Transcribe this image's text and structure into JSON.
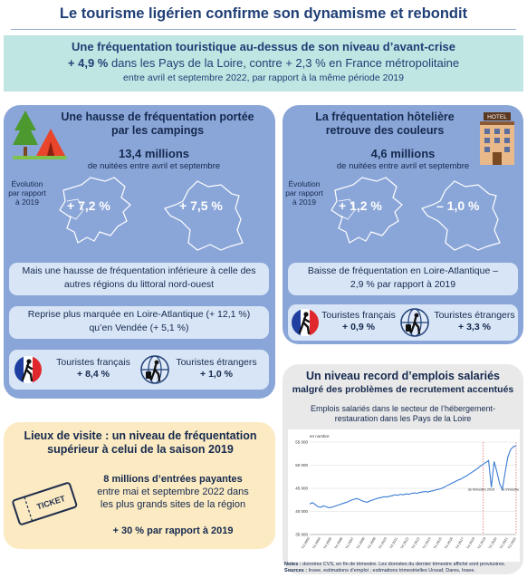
{
  "title": "Le tourisme ligérien confirme son dynamisme et rebondit",
  "banner": {
    "line1": "Une fréquentation touristique au-dessus de son niveau d’avant-crise",
    "line2_strong": "+ 4,9 %",
    "line2_rest": " dans les Pays de la Loire, contre + 2,3 % en France métropolitaine",
    "line3": "entre avril et septembre 2022, par rapport à la même période 2019"
  },
  "campings": {
    "title_l1": "Une hausse de fréquentation portée",
    "title_l2": "par les campings",
    "big": "13,4 millions",
    "sub": "de nuitées entre avril et septembre",
    "evo_l1": "Évolution",
    "evo_l2": "par rapport",
    "evo_l3": "à 2019",
    "pct_region": "+ 7,2 %",
    "pct_france": "+ 7,5 %",
    "box1": "Mais une hausse de fréquentation inférieure à celle des autres régions du littoral nord-ouest",
    "box2": "Reprise plus marquée en Loire-Atlantique (+ 12,1 %) qu’en Vendée (+ 5,1 %)",
    "fr_label": "Touristes français",
    "fr_value": "+ 8,4 %",
    "et_label": "Touristes étrangers",
    "et_value": "+ 1,0 %"
  },
  "hotels": {
    "title_l1": "La fréquentation hôtelière",
    "title_l2": "retrouve des couleurs",
    "big": "4,6 millions",
    "sub": "de nuitées entre avril et septembre",
    "evo_l1": "Évolution",
    "evo_l2": "par rapport",
    "evo_l3": "à 2019",
    "pct_region": "+ 1,2 %",
    "pct_france": "– 1,0 %",
    "box1": "Baisse de fréquentation en Loire-Atlantique – 2,9 % par rapport à 2019",
    "fr_label": "Touristes français",
    "fr_value": "+ 0,9 %",
    "et_label": "Touristes étrangers",
    "et_value": "+ 3,3 %",
    "hotel_sign": "HOTEL"
  },
  "visits": {
    "title_l1": "Lieux de visite : un niveau de fréquentation",
    "title_l2": "supérieur à celui de la saison 2019",
    "body_l1": "8 millions d’entrées payantes",
    "body_l2": "entre mai et septembre 2022 dans",
    "body_l3": "les plus grands sites de la région",
    "pct": "+ 30 % par rapport à 2019",
    "ticket_label": "TICKET"
  },
  "emplois": {
    "title_l1": "Un niveau record d’emplois salariés",
    "title_l2": "malgré des problèmes de recrutement accentués",
    "chart_title_l1": "Emplois salariés dans le secteur de l’hébergement-",
    "chart_title_l2": "restauration dans les Pays de la Loire",
    "notes_label": "Notes :",
    "notes": "données CVS, en fin de trimestre. Les données du dernier trimestre affiché sont provisoires.",
    "sources_label": "Sources :",
    "sources": "Insee, estimations d’emploi ; estimations trimestrielles Urssaf, Dares, Insee."
  },
  "chart_data": {
    "type": "line",
    "ylabel": "en nombre",
    "ylim": [
      35000,
      55000
    ],
    "y_ticks": [
      "35 000",
      "40 000",
      "45 000",
      "50 000",
      "55 000"
    ],
    "x_tick_labels": [
      "T4 2003",
      "T4 2004",
      "T4 2005",
      "T4 2006",
      "T4 2007",
      "T4 2008",
      "T4 2009",
      "T4 2010",
      "T4 2011",
      "T4 2012",
      "T4 2013",
      "T4 2014",
      "T4 2015",
      "T4 2016",
      "T4 2017",
      "T4 2018",
      "T4 2019",
      "T4 2020",
      "T4 2021",
      "T3 2022"
    ],
    "annotations": [
      {
        "label": "3e trimestre 2019",
        "x_index": 63
      },
      {
        "label": "3e trimestre 2022",
        "x_index": 75
      }
    ],
    "series": [
      {
        "values": [
          41600,
          41900,
          41500,
          41000,
          40900,
          41200,
          41000,
          40800,
          40900,
          41100,
          41300,
          41500,
          41700,
          41900,
          42100,
          42400,
          42600,
          42800,
          42600,
          42300,
          42100,
          42000,
          42300,
          42500,
          42700,
          42900,
          43000,
          43200,
          43100,
          43300,
          43400,
          43600,
          43500,
          43700,
          43600,
          43800,
          43700,
          43900,
          44000,
          43900,
          44100,
          44200,
          44300,
          44200,
          44400,
          44500,
          44700,
          44800,
          45000,
          45300,
          45600,
          45900,
          46200,
          46500,
          46800,
          47000,
          47400,
          47700,
          48100,
          48500,
          48900,
          49300,
          49800,
          50200,
          50600,
          51000,
          45200,
          50800,
          48600,
          46000,
          44800,
          48400,
          51800,
          53400,
          54000,
          54200
        ]
      }
    ]
  },
  "colors": {
    "title": "#1f3f76",
    "banner_bg": "#bfe6e2",
    "panel_bg": "#8aa6d8",
    "box_bg": "#d8e5f6",
    "visits_bg": "#fbeac2",
    "emplois_bg": "#e9e9e9",
    "line": "#3b7bd3"
  }
}
